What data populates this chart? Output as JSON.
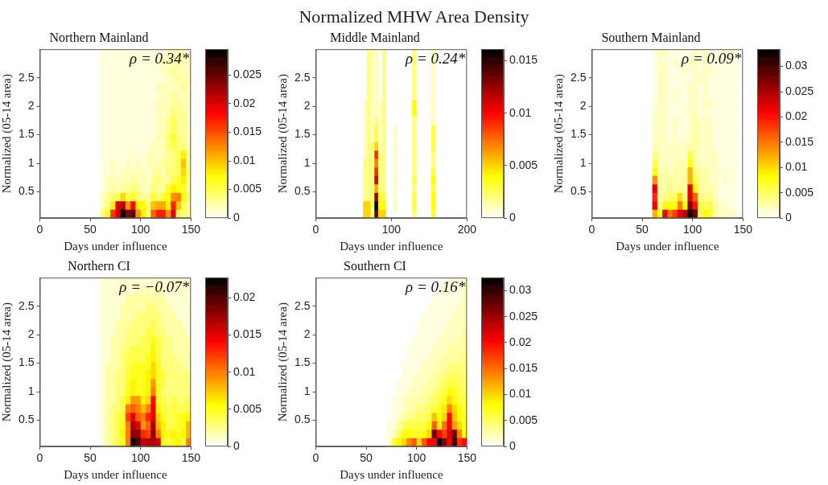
{
  "chart_data": [
    {
      "type": "other",
      "title": "Normalized MHW Area Density"
    },
    {
      "type": "heatmap",
      "title": "Northern Mainland",
      "xlabel": "Days under influence",
      "ylabel": "Normalized (05-14 area)",
      "annotations": [
        "ρ = 0.34*"
      ],
      "x": [
        62.5,
        67.5,
        72.5,
        77.5,
        82.5,
        87.5,
        92.5,
        97.5,
        102.5,
        107.5,
        112.5,
        117.5,
        122.5,
        127.5,
        132.5,
        137.5,
        142.5,
        147.5
      ],
      "xlim": [
        0,
        150
      ],
      "xticks": [
        0,
        50,
        100,
        150
      ],
      "ylim": [
        0.04,
        3
      ],
      "yticks": [
        0.5,
        1,
        1.5,
        2,
        2.5
      ],
      "clim": [
        0,
        0.0295
      ],
      "cticks": [
        0,
        0.005,
        0.01,
        0.015,
        0.02,
        0.025
      ],
      "cells": [
        [
          0.001,
          0.001,
          0.001,
          0.001,
          0.001,
          0.001,
          0.001,
          0.001,
          0.001,
          0.001,
          0.001,
          0.001,
          0.001,
          0.002,
          0.002,
          0.002,
          0.002,
          0.001
        ],
        [
          0.001,
          0.001,
          0.001,
          0.001,
          0.001,
          0.001,
          0.001,
          0.001,
          0.001,
          0.001,
          0.001,
          0.002,
          0.002,
          0.002,
          0.002,
          0.003,
          0.002,
          0.002
        ],
        [
          0.001,
          0.001,
          0.001,
          0.001,
          0.001,
          0.001,
          0.001,
          0.001,
          0.001,
          0.001,
          0.001,
          0.001,
          0.002,
          0.002,
          0.003,
          0.002,
          0.002,
          0.002
        ],
        [
          0.001,
          0.001,
          0.001,
          0.001,
          0.001,
          0.001,
          0.001,
          0.001,
          0.001,
          0.001,
          0.001,
          0.001,
          0.001,
          0.002,
          0.002,
          0.003,
          0.002,
          0.002
        ],
        [
          0.001,
          0.001,
          0.001,
          0.001,
          0.001,
          0.001,
          0.001,
          0.001,
          0.001,
          0.001,
          0.001,
          0.002,
          0.002,
          0.002,
          0.002,
          0.002,
          0.003,
          0.002
        ],
        [
          0.001,
          0.001,
          0.001,
          0.001,
          0.001,
          0.001,
          0.001,
          0.001,
          0.001,
          0.001,
          0.001,
          0.001,
          0.002,
          0.002,
          0.003,
          0.002,
          0.002,
          0.002
        ],
        [
          0.001,
          0.001,
          0.001,
          0.001,
          0.001,
          0.001,
          0.001,
          0.001,
          0.001,
          0.001,
          0.001,
          0.002,
          0.002,
          0.002,
          0.003,
          0.003,
          0.002,
          0.002
        ],
        [
          0.001,
          0.001,
          0.001,
          0.001,
          0.001,
          0.001,
          0.001,
          0.001,
          0.001,
          0.001,
          0.001,
          0.002,
          0.002,
          0.002,
          0.004,
          0.003,
          0.003,
          0.002
        ],
        [
          0.001,
          0.001,
          0.001,
          0.001,
          0.001,
          0.001,
          0.001,
          0.001,
          0.001,
          0.001,
          0.001,
          0.002,
          0.002,
          0.003,
          0.005,
          0.003,
          0.003,
          0.002
        ],
        [
          0.001,
          0.001,
          0.001,
          0.001,
          0.001,
          0.001,
          0.001,
          0.001,
          0.001,
          0.001,
          0.001,
          0.002,
          0.002,
          0.003,
          0.005,
          0.003,
          0.003,
          0.002
        ],
        [
          0.001,
          0.001,
          0.001,
          0.001,
          0.001,
          0.001,
          0.001,
          0.001,
          0.001,
          0.001,
          0.001,
          0.002,
          0.002,
          0.004,
          0.006,
          0.004,
          0.003,
          0.002
        ],
        [
          0.001,
          0.001,
          0.001,
          0.001,
          0.001,
          0.001,
          0.001,
          0.001,
          0.001,
          0.001,
          0.002,
          0.002,
          0.002,
          0.004,
          0.005,
          0.004,
          0.004,
          0.002
        ],
        [
          0.001,
          0.001,
          0.001,
          0.001,
          0.001,
          0.001,
          0.002,
          0.001,
          0.001,
          0.002,
          0.002,
          0.002,
          0.002,
          0.003,
          0.004,
          0.005,
          0.008,
          0.003
        ],
        [
          0.001,
          0.001,
          0.002,
          0.001,
          0.001,
          0.002,
          0.001,
          0.002,
          0.001,
          0.002,
          0.002,
          0.002,
          0.003,
          0.003,
          0.004,
          0.005,
          0.01,
          0.003
        ],
        [
          0.001,
          0.001,
          0.002,
          0.001,
          0.002,
          0.002,
          0.002,
          0.002,
          0.002,
          0.001,
          0.003,
          0.003,
          0.002,
          0.004,
          0.004,
          0.005,
          0.009,
          0.004
        ],
        [
          0.001,
          0.002,
          0.002,
          0.002,
          0.002,
          0.002,
          0.003,
          0.002,
          0.002,
          0.002,
          0.003,
          0.004,
          0.003,
          0.003,
          0.005,
          0.006,
          0.008,
          0.003
        ],
        [
          0.001,
          0.002,
          0.003,
          0.002,
          0.003,
          0.003,
          0.004,
          0.003,
          0.002,
          0.002,
          0.004,
          0.003,
          0.003,
          0.006,
          0.008,
          0.007,
          0.006,
          0.003
        ],
        [
          0.002,
          0.003,
          0.004,
          0.005,
          0.009,
          0.005,
          0.006,
          0.004,
          0.003,
          0.003,
          0.006,
          0.004,
          0.006,
          0.007,
          0.012,
          0.013,
          0.007,
          0.004
        ],
        [
          0.002,
          0.004,
          0.008,
          0.02,
          0.022,
          0.012,
          0.018,
          0.008,
          0.007,
          0.004,
          0.01,
          0.011,
          0.011,
          0.008,
          0.017,
          0.01,
          0.005,
          0.003
        ],
        [
          0.004,
          0.006,
          0.016,
          0.02,
          0.029,
          0.024,
          0.026,
          0.012,
          0.008,
          0.004,
          0.014,
          0.017,
          0.017,
          0.012,
          0.02,
          0.005,
          0.004,
          0.003
        ]
      ]
    },
    {
      "type": "heatmap",
      "title": "Middle Mainland",
      "xlabel": "Days under influence",
      "ylabel": "Normalized (05-14 area)",
      "annotations": [
        "ρ = 0.24*"
      ],
      "x": [
        65,
        70,
        75,
        80,
        85,
        90,
        95,
        100,
        105,
        110,
        115,
        120,
        125,
        130,
        135,
        140,
        145,
        150,
        155
      ],
      "xlim": [
        0,
        200
      ],
      "xticks": [
        0,
        100,
        200
      ],
      "ylim": [
        0.04,
        3
      ],
      "yticks": [
        0.5,
        1,
        1.5,
        2,
        2.5
      ],
      "clim": [
        0,
        0.0161
      ],
      "cticks": [
        0,
        0.005,
        0.01,
        0.015
      ],
      "cells": [
        [
          null,
          0.002,
          0.001,
          0.001,
          null,
          0.002,
          null,
          null,
          null,
          null,
          null,
          null,
          null,
          0.002,
          null,
          null,
          null,
          null,
          0.001
        ],
        [
          null,
          0.002,
          0.001,
          0.001,
          null,
          0.002,
          null,
          null,
          null,
          null,
          null,
          null,
          null,
          0.002,
          null,
          null,
          null,
          null,
          0.001
        ],
        [
          null,
          0.002,
          0.001,
          0.001,
          null,
          0.002,
          null,
          null,
          null,
          null,
          null,
          null,
          null,
          0.002,
          null,
          null,
          null,
          null,
          0.001
        ],
        [
          null,
          0.002,
          0.001,
          0.001,
          null,
          0.002,
          null,
          null,
          null,
          null,
          null,
          null,
          null,
          0.002,
          null,
          null,
          null,
          null,
          0.001
        ],
        [
          null,
          0.002,
          0.001,
          0.001,
          null,
          0.002,
          null,
          null,
          null,
          null,
          null,
          null,
          null,
          0.002,
          null,
          null,
          null,
          null,
          0.001
        ],
        [
          null,
          0.002,
          0.001,
          0.001,
          null,
          0.002,
          null,
          null,
          null,
          null,
          null,
          null,
          null,
          0.002,
          null,
          null,
          null,
          null,
          0.001
        ],
        [
          0.001,
          0.002,
          0.001,
          0.001,
          0.001,
          0.002,
          null,
          null,
          null,
          null,
          null,
          null,
          null,
          0.004,
          null,
          null,
          null,
          null,
          0.001
        ],
        [
          0.001,
          0.002,
          0.001,
          0.001,
          0.001,
          0.002,
          null,
          null,
          null,
          null,
          null,
          null,
          null,
          0.004,
          null,
          null,
          null,
          null,
          0.001
        ],
        [
          0.001,
          0.002,
          0.001,
          0.002,
          0.001,
          0.002,
          null,
          null,
          null,
          null,
          null,
          null,
          null,
          0.002,
          null,
          null,
          null,
          null,
          0.001
        ],
        [
          0.001,
          0.002,
          0.001,
          0.003,
          0.001,
          0.002,
          null,
          null,
          0.001,
          null,
          null,
          null,
          null,
          0.002,
          null,
          null,
          null,
          null,
          0.003
        ],
        [
          0.001,
          0.002,
          0.001,
          0.003,
          0.001,
          0.002,
          null,
          null,
          0.001,
          null,
          null,
          null,
          null,
          0.002,
          null,
          null,
          null,
          null,
          0.003
        ],
        [
          0.001,
          0.002,
          0.002,
          0.005,
          0.001,
          0.002,
          null,
          null,
          0.001,
          null,
          null,
          null,
          null,
          0.002,
          null,
          null,
          null,
          null,
          0.003
        ],
        [
          0.001,
          0.002,
          0.002,
          0.009,
          0.002,
          0.002,
          null,
          null,
          0.001,
          null,
          null,
          null,
          null,
          0.002,
          null,
          null,
          null,
          null,
          0.002
        ],
        [
          0.002,
          0.002,
          0.002,
          0.007,
          0.002,
          0.002,
          null,
          null,
          0.001,
          null,
          null,
          null,
          null,
          0.002,
          null,
          null,
          null,
          null,
          0.002
        ],
        [
          0.002,
          0.002,
          0.002,
          0.009,
          0.002,
          0.002,
          null,
          null,
          0.001,
          null,
          null,
          null,
          null,
          0.002,
          null,
          null,
          null,
          null,
          0.003
        ],
        [
          0.002,
          0.002,
          0.002,
          0.011,
          0.002,
          0.002,
          null,
          null,
          0.001,
          null,
          null,
          null,
          null,
          0.003,
          null,
          null,
          null,
          null,
          0.004
        ],
        [
          0.002,
          0.002,
          0.002,
          0.006,
          0.002,
          0.002,
          null,
          null,
          0.001,
          null,
          null,
          null,
          null,
          0.002,
          null,
          null,
          null,
          null,
          0.003
        ],
        [
          0.002,
          0.002,
          0.002,
          0.012,
          0.003,
          0.003,
          null,
          null,
          0.001,
          null,
          null,
          null,
          null,
          0.003,
          null,
          null,
          null,
          null,
          0.004
        ],
        [
          0.005,
          0.005,
          0.002,
          0.016,
          0.004,
          0.004,
          null,
          null,
          0.001,
          null,
          null,
          null,
          null,
          0.003,
          null,
          null,
          null,
          null,
          0.004
        ],
        [
          0.005,
          0.005,
          0.002,
          0.014,
          0.005,
          0.005,
          null,
          null,
          null,
          null,
          null,
          null,
          null,
          0.002,
          null,
          null,
          null,
          null,
          0.003
        ]
      ]
    },
    {
      "type": "heatmap",
      "title": "Southern Mainland",
      "xlabel": "Days under influence",
      "ylabel": "Normalized (05-14 area)",
      "annotations": [
        "ρ = 0.09*"
      ],
      "x": [
        62.5,
        67.5,
        72.5,
        77.5,
        82.5,
        87.5,
        92.5,
        97.5,
        102.5,
        107.5,
        112.5,
        117.5,
        122.5,
        127.5,
        132.5,
        137.5,
        142.5
      ],
      "xlim": [
        0,
        150
      ],
      "xticks": [
        0,
        50,
        100,
        150
      ],
      "ylim": [
        0.04,
        3
      ],
      "yticks": [
        0.5,
        1,
        1.5,
        2,
        2.5
      ],
      "clim": [
        0,
        0.0334
      ],
      "cticks": [
        0,
        0.005,
        0.01,
        0.015,
        0.02,
        0.025,
        0.03
      ],
      "cells": [
        [
          0.001,
          0.002,
          0.002,
          0.001,
          0.001,
          0.001,
          0.001,
          0.001,
          0.002,
          0.001,
          0.002,
          0.001,
          0.001,
          0.001,
          0.001,
          0.001,
          0.001
        ],
        [
          0.001,
          0.002,
          0.001,
          0.001,
          0.002,
          0.001,
          0.001,
          0.002,
          0.002,
          0.001,
          0.002,
          0.001,
          0.001,
          0.001,
          0.001,
          0.001,
          0.001
        ],
        [
          0.001,
          0.002,
          0.002,
          0.001,
          0.001,
          0.001,
          0.002,
          0.001,
          0.002,
          0.001,
          0.002,
          0.002,
          0.001,
          0.001,
          0.001,
          0.001,
          0.001
        ],
        [
          0.001,
          0.002,
          0.002,
          0.001,
          0.001,
          0.001,
          0.001,
          0.001,
          0.002,
          0.002,
          0.002,
          0.001,
          0.001,
          0.001,
          0.001,
          0.001,
          0.001
        ],
        [
          0.001,
          0.002,
          0.002,
          0.001,
          0.001,
          0.001,
          0.001,
          0.002,
          0.002,
          0.001,
          0.002,
          0.001,
          0.001,
          0.001,
          0.001,
          0.001,
          0.001
        ],
        [
          0.001,
          0.002,
          0.002,
          0.001,
          0.002,
          0.001,
          0.001,
          0.002,
          0.002,
          0.001,
          0.002,
          0.001,
          0.001,
          0.001,
          0.001,
          0.001,
          0.001
        ],
        [
          0.001,
          0.002,
          0.002,
          0.001,
          0.001,
          0.001,
          0.001,
          0.002,
          0.002,
          0.001,
          0.002,
          0.002,
          0.001,
          0.001,
          0.001,
          0.001,
          0.001
        ],
        [
          0.002,
          0.002,
          0.002,
          0.001,
          0.001,
          0.001,
          0.001,
          0.002,
          0.002,
          0.001,
          0.002,
          0.001,
          0.001,
          0.001,
          0.001,
          0.001,
          0.001
        ],
        [
          0.002,
          0.002,
          0.002,
          0.001,
          0.002,
          0.001,
          0.001,
          0.002,
          0.003,
          0.002,
          0.002,
          0.002,
          0.001,
          0.001,
          0.001,
          0.001,
          0.001
        ],
        [
          0.002,
          0.002,
          0.002,
          0.001,
          0.002,
          0.001,
          0.001,
          0.002,
          0.003,
          0.002,
          0.002,
          0.002,
          0.001,
          0.001,
          0.001,
          0.001,
          0.001
        ],
        [
          0.002,
          0.002,
          0.002,
          0.001,
          0.002,
          0.001,
          0.001,
          0.002,
          0.003,
          0.002,
          0.002,
          0.002,
          0.001,
          0.001,
          0.001,
          0.001,
          0.001
        ],
        [
          0.003,
          0.002,
          0.002,
          0.002,
          0.002,
          0.002,
          0.002,
          0.003,
          0.003,
          0.002,
          0.002,
          0.002,
          0.001,
          0.001,
          0.001,
          0.001,
          0.001
        ],
        [
          0.004,
          0.002,
          0.002,
          0.002,
          0.002,
          0.002,
          0.002,
          0.006,
          0.003,
          0.002,
          0.002,
          0.002,
          0.002,
          0.001,
          0.001,
          0.001,
          0.001
        ],
        [
          0.006,
          0.002,
          0.002,
          0.002,
          0.002,
          0.003,
          0.002,
          0.008,
          0.003,
          0.002,
          0.002,
          0.002,
          0.002,
          0.001,
          0.001,
          0.001,
          0.001
        ],
        [
          0.008,
          0.002,
          0.003,
          0.002,
          0.003,
          0.003,
          0.003,
          0.012,
          0.004,
          0.003,
          0.003,
          0.002,
          0.002,
          0.001,
          0.002,
          0.001,
          0.001
        ],
        [
          0.014,
          0.003,
          0.003,
          0.003,
          0.003,
          0.003,
          0.003,
          0.012,
          0.006,
          0.003,
          0.003,
          0.002,
          0.002,
          0.001,
          0.002,
          0.001,
          0.001
        ],
        [
          0.022,
          0.003,
          0.003,
          0.004,
          0.003,
          0.004,
          0.003,
          0.022,
          0.008,
          0.003,
          0.003,
          0.003,
          0.002,
          0.001,
          0.001,
          0.001,
          0.001
        ],
        [
          0.019,
          0.003,
          0.004,
          0.005,
          0.005,
          0.01,
          0.004,
          0.022,
          0.016,
          0.004,
          0.004,
          0.004,
          0.002,
          0.001,
          0.001,
          0.001,
          0.001
        ],
        [
          0.021,
          0.004,
          0.008,
          0.008,
          0.008,
          0.015,
          0.008,
          0.027,
          0.02,
          0.006,
          0.005,
          0.006,
          0.003,
          0.002,
          0.002,
          0.001,
          0.001
        ],
        [
          0.012,
          0.008,
          0.022,
          0.015,
          0.018,
          0.022,
          0.024,
          0.033,
          0.028,
          0.006,
          0.008,
          0.007,
          0.003,
          0.002,
          0.002,
          0.002,
          0.001
        ]
      ]
    },
    {
      "type": "heatmap",
      "title": "Northern CI",
      "xlabel": "Days under influence",
      "ylabel": "Normalized (05-14 area)",
      "annotations": [
        "ρ = −0.07*"
      ],
      "x": [
        62.5,
        67.5,
        72.5,
        77.5,
        82.5,
        87.5,
        92.5,
        97.5,
        102.5,
        107.5,
        112.5,
        117.5,
        122.5,
        127.5,
        132.5,
        137.5,
        142.5,
        147.5
      ],
      "xlim": [
        0,
        150
      ],
      "xticks": [
        0,
        50,
        100,
        150
      ],
      "ylim": [
        0.04,
        3
      ],
      "yticks": [
        0.5,
        1,
        1.5,
        2,
        2.5
      ],
      "clim": [
        0,
        0.0227
      ],
      "cticks": [
        0,
        0.005,
        0.01,
        0.015,
        0.02
      ],
      "cells": [
        [
          0.001,
          0.001,
          0.001,
          0.001,
          0.001,
          0.001,
          0.001,
          0.001,
          0.001,
          0.001,
          0.001,
          0.001,
          0.001,
          0.001,
          0.001,
          0.001,
          0.001,
          0.001
        ],
        [
          0.001,
          0.001,
          0.001,
          0.001,
          0.001,
          0.001,
          0.001,
          0.002,
          0.001,
          0.002,
          0.001,
          0.002,
          0.001,
          0.001,
          0.001,
          0.001,
          0.001,
          0.001
        ],
        [
          0.001,
          0.001,
          0.001,
          0.001,
          0.001,
          0.002,
          0.002,
          0.002,
          0.002,
          0.002,
          0.002,
          0.002,
          0.002,
          0.001,
          0.001,
          0.001,
          0.001,
          0.001
        ],
        [
          0.001,
          0.001,
          0.001,
          0.001,
          0.002,
          0.002,
          0.002,
          0.002,
          0.002,
          0.003,
          0.003,
          0.002,
          0.002,
          0.002,
          0.001,
          0.001,
          0.001,
          0.001
        ],
        [
          0.001,
          0.001,
          0.001,
          0.001,
          0.002,
          0.002,
          0.002,
          0.003,
          0.003,
          0.003,
          0.003,
          0.003,
          0.002,
          0.002,
          0.002,
          0.001,
          0.001,
          0.001
        ],
        [
          0.001,
          0.001,
          0.001,
          0.002,
          0.002,
          0.002,
          0.003,
          0.003,
          0.003,
          0.003,
          0.004,
          0.003,
          0.002,
          0.002,
          0.002,
          0.002,
          0.001,
          0.001
        ],
        [
          0.001,
          0.001,
          0.001,
          0.002,
          0.002,
          0.003,
          0.003,
          0.003,
          0.003,
          0.004,
          0.004,
          0.003,
          0.003,
          0.002,
          0.002,
          0.002,
          0.002,
          0.001
        ],
        [
          0.001,
          0.001,
          0.002,
          0.002,
          0.002,
          0.003,
          0.003,
          0.003,
          0.004,
          0.004,
          0.005,
          0.004,
          0.003,
          0.003,
          0.002,
          0.002,
          0.002,
          0.002
        ],
        [
          0.001,
          0.001,
          0.002,
          0.002,
          0.003,
          0.003,
          0.004,
          0.004,
          0.004,
          0.004,
          0.006,
          0.004,
          0.003,
          0.003,
          0.002,
          0.002,
          0.002,
          0.002
        ],
        [
          0.001,
          0.001,
          0.002,
          0.002,
          0.003,
          0.004,
          0.004,
          0.004,
          0.004,
          0.005,
          0.006,
          0.004,
          0.003,
          0.003,
          0.003,
          0.002,
          0.002,
          0.002
        ],
        [
          0.001,
          0.002,
          0.002,
          0.002,
          0.003,
          0.004,
          0.005,
          0.005,
          0.005,
          0.005,
          0.007,
          0.005,
          0.003,
          0.003,
          0.003,
          0.003,
          0.002,
          0.002
        ],
        [
          0.001,
          0.002,
          0.002,
          0.003,
          0.003,
          0.004,
          0.005,
          0.005,
          0.005,
          0.006,
          0.007,
          0.005,
          0.004,
          0.003,
          0.003,
          0.003,
          0.003,
          0.003
        ],
        [
          0.001,
          0.002,
          0.002,
          0.003,
          0.003,
          0.005,
          0.006,
          0.005,
          0.005,
          0.006,
          0.009,
          0.005,
          0.004,
          0.003,
          0.003,
          0.003,
          0.003,
          0.003
        ],
        [
          0.001,
          0.002,
          0.002,
          0.003,
          0.003,
          0.005,
          0.006,
          0.005,
          0.005,
          0.006,
          0.01,
          0.005,
          0.003,
          0.003,
          0.003,
          0.003,
          0.003,
          0.003
        ],
        [
          0.001,
          0.002,
          0.002,
          0.003,
          0.004,
          0.006,
          0.009,
          0.009,
          0.006,
          0.007,
          0.014,
          0.005,
          0.004,
          0.003,
          0.004,
          0.003,
          0.003,
          0.004
        ],
        [
          0.001,
          0.002,
          0.003,
          0.003,
          0.004,
          0.01,
          0.011,
          0.01,
          0.008,
          0.01,
          0.015,
          0.006,
          0.004,
          0.004,
          0.004,
          0.004,
          0.004,
          0.004
        ],
        [
          0.001,
          0.002,
          0.003,
          0.004,
          0.005,
          0.012,
          0.015,
          0.011,
          0.01,
          0.013,
          0.015,
          0.007,
          0.005,
          0.004,
          0.004,
          0.005,
          0.005,
          0.006
        ],
        [
          0.001,
          0.002,
          0.003,
          0.004,
          0.005,
          0.01,
          0.017,
          0.015,
          0.009,
          0.011,
          0.017,
          0.008,
          0.006,
          0.004,
          0.004,
          0.005,
          0.005,
          0.008
        ],
        [
          0.001,
          0.002,
          0.003,
          0.004,
          0.006,
          0.01,
          0.018,
          0.018,
          0.013,
          0.012,
          0.018,
          0.01,
          0.006,
          0.005,
          0.006,
          0.005,
          0.006,
          0.008
        ],
        [
          0.001,
          0.002,
          0.003,
          0.004,
          0.005,
          0.01,
          0.022,
          0.02,
          0.016,
          0.017,
          0.017,
          0.016,
          0.005,
          0.004,
          0.005,
          0.006,
          0.004,
          0.01
        ]
      ]
    },
    {
      "type": "heatmap",
      "title": "Southern CI",
      "xlabel": "Days under influence",
      "ylabel": "Normalized (05-14 area)",
      "annotations": [
        "ρ = 0.16*"
      ],
      "x": [
        72.5,
        77.5,
        82.5,
        87.5,
        92.5,
        97.5,
        102.5,
        107.5,
        112.5,
        117.5,
        122.5,
        127.5,
        132.5,
        137.5,
        142.5,
        147.5
      ],
      "xlim": [
        0,
        150
      ],
      "xticks": [
        0,
        50,
        100,
        150
      ],
      "ylim": [
        0.04,
        3
      ],
      "yticks": [
        0.5,
        1,
        1.5,
        2,
        2.5
      ],
      "clim": [
        0,
        0.0325
      ],
      "cticks": [
        0,
        0.005,
        0.01,
        0.015,
        0.02,
        0.025,
        0.03
      ],
      "cells": [
        [
          null,
          null,
          null,
          null,
          null,
          null,
          null,
          null,
          null,
          null,
          null,
          0.001,
          0.001,
          0.001,
          0.001,
          0.002
        ],
        [
          null,
          null,
          null,
          null,
          null,
          null,
          null,
          null,
          null,
          null,
          0.001,
          0.001,
          0.001,
          0.001,
          0.001,
          0.002
        ],
        [
          null,
          null,
          null,
          null,
          null,
          null,
          null,
          null,
          null,
          0.001,
          0.001,
          0.001,
          0.001,
          0.001,
          0.001,
          0.002
        ],
        [
          null,
          null,
          null,
          null,
          null,
          null,
          null,
          null,
          0.001,
          0.001,
          0.001,
          0.001,
          0.001,
          0.001,
          0.002,
          0.002
        ],
        [
          null,
          null,
          null,
          null,
          null,
          null,
          null,
          0.001,
          0.001,
          0.001,
          0.001,
          0.001,
          0.001,
          0.002,
          0.002,
          0.002
        ],
        [
          null,
          null,
          null,
          null,
          null,
          null,
          0.001,
          0.001,
          0.001,
          0.001,
          0.001,
          0.001,
          0.002,
          0.002,
          0.002,
          0.002
        ],
        [
          null,
          null,
          null,
          null,
          null,
          null,
          0.001,
          0.001,
          0.001,
          0.001,
          0.001,
          0.002,
          0.002,
          0.002,
          0.002,
          0.003
        ],
        [
          null,
          null,
          null,
          null,
          null,
          0.001,
          0.001,
          0.001,
          0.001,
          0.001,
          0.002,
          0.002,
          0.002,
          0.002,
          0.003,
          0.003
        ],
        [
          null,
          null,
          null,
          null,
          0.001,
          0.001,
          0.001,
          0.001,
          0.001,
          0.002,
          0.002,
          0.002,
          0.003,
          0.003,
          0.003,
          0.003
        ],
        [
          null,
          null,
          null,
          null,
          0.001,
          0.001,
          0.001,
          0.001,
          0.002,
          0.002,
          0.002,
          0.003,
          0.003,
          0.003,
          0.003,
          0.004
        ],
        [
          null,
          null,
          null,
          0.001,
          0.001,
          0.001,
          0.001,
          0.002,
          0.002,
          0.002,
          0.003,
          0.003,
          0.004,
          0.004,
          0.004,
          0.004
        ],
        [
          null,
          null,
          null,
          0.001,
          0.001,
          0.001,
          0.002,
          0.002,
          0.002,
          0.003,
          0.003,
          0.004,
          0.005,
          0.005,
          0.005,
          0.004
        ],
        [
          null,
          null,
          0.001,
          0.001,
          0.001,
          0.002,
          0.002,
          0.002,
          0.003,
          0.003,
          0.004,
          0.005,
          0.006,
          0.006,
          0.005,
          0.005
        ],
        [
          null,
          null,
          0.001,
          0.001,
          0.002,
          0.002,
          0.002,
          0.003,
          0.003,
          0.004,
          0.005,
          0.006,
          0.008,
          0.007,
          0.006,
          0.005
        ],
        [
          null,
          0.001,
          0.001,
          0.002,
          0.002,
          0.003,
          0.003,
          0.003,
          0.004,
          0.005,
          0.006,
          0.007,
          0.01,
          0.008,
          0.006,
          0.006
        ],
        [
          null,
          0.001,
          0.001,
          0.002,
          0.003,
          0.003,
          0.004,
          0.004,
          0.005,
          0.006,
          0.007,
          0.009,
          0.014,
          0.01,
          0.008,
          0.006
        ],
        [
          null,
          0.001,
          0.002,
          0.003,
          0.004,
          0.004,
          0.005,
          0.005,
          0.006,
          0.011,
          0.008,
          0.01,
          0.02,
          0.011,
          0.008,
          0.007
        ],
        [
          0.001,
          0.001,
          0.003,
          0.005,
          0.006,
          0.006,
          0.006,
          0.006,
          0.008,
          0.016,
          0.009,
          0.015,
          0.021,
          0.013,
          0.01,
          0.007
        ],
        [
          0.001,
          0.002,
          0.005,
          0.008,
          0.008,
          0.007,
          0.007,
          0.008,
          0.01,
          0.027,
          0.02,
          0.017,
          0.022,
          0.027,
          0.014,
          0.008
        ],
        [
          0.001,
          0.006,
          0.008,
          0.01,
          0.014,
          0.016,
          0.01,
          0.016,
          0.02,
          0.02,
          0.032,
          0.026,
          0.021,
          0.03,
          0.018,
          0.02
        ]
      ]
    }
  ]
}
